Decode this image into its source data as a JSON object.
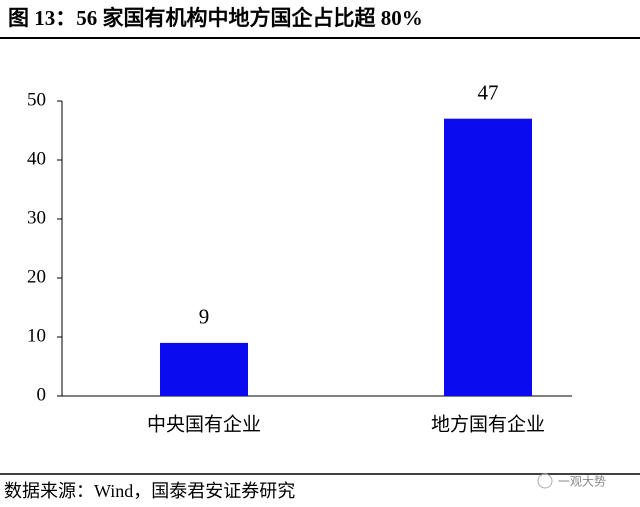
{
  "chart_data": {
    "type": "bar",
    "title": "图 13：56 家国有机构中地方国企占比超 80%",
    "categories": [
      "中央国有企业",
      "地方国有企业"
    ],
    "values": [
      9,
      47
    ],
    "color": "#0b0bf0",
    "ylim": [
      0,
      50
    ],
    "yticks": [
      0,
      10,
      20,
      30,
      40,
      50
    ],
    "source": "数据来源：Wind，国泰君安证券研究",
    "watermark": "一观大势"
  }
}
